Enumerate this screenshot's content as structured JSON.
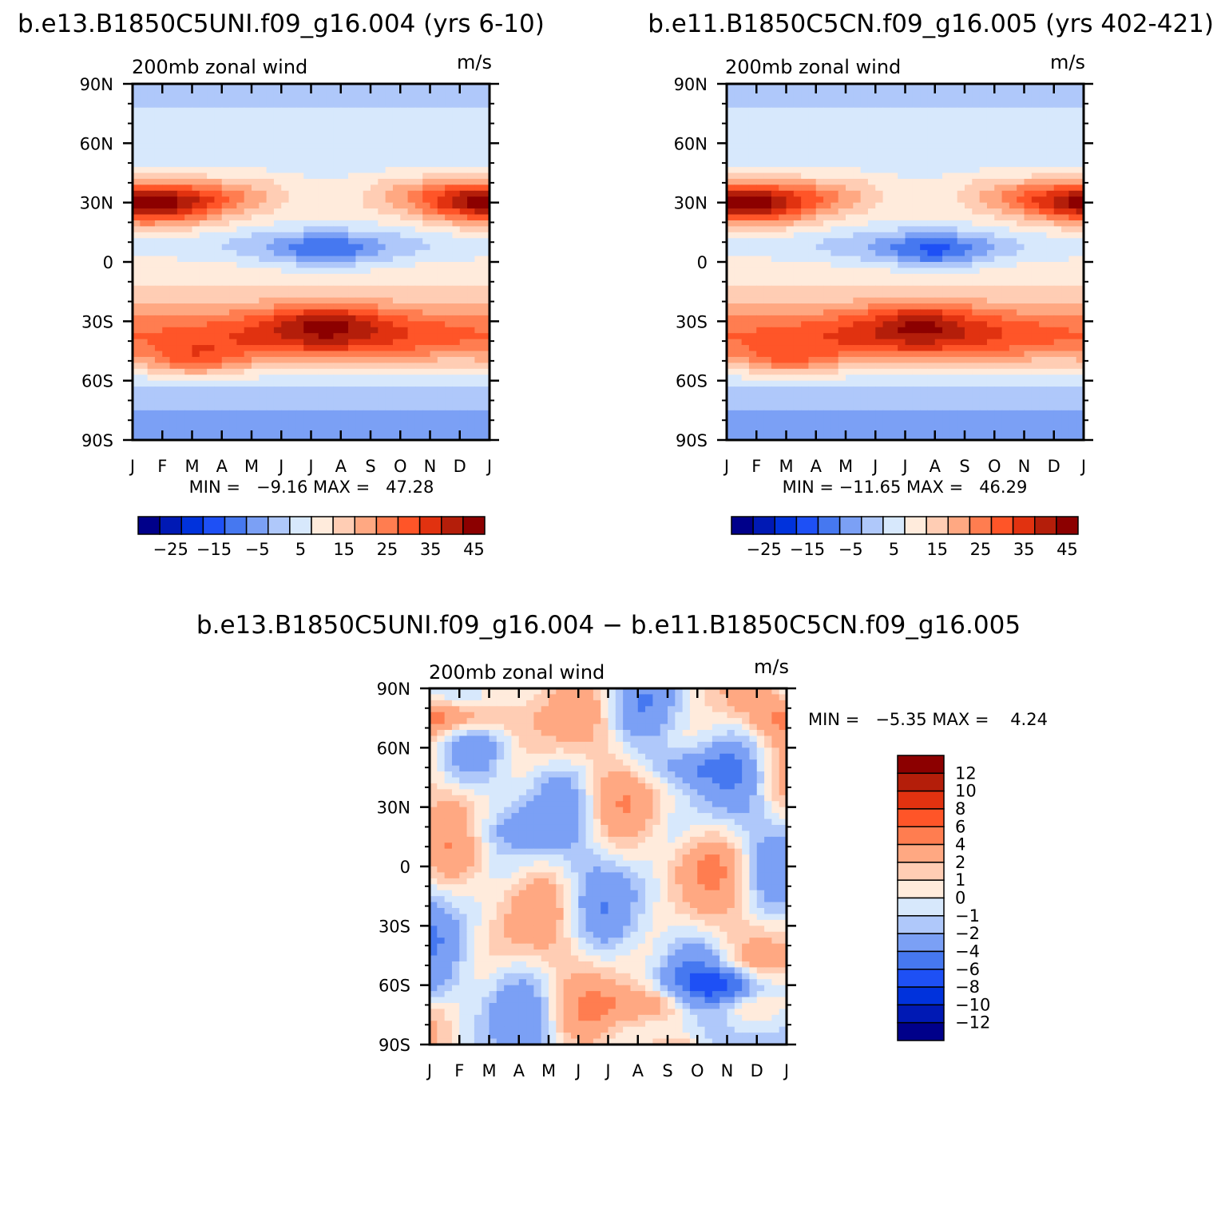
{
  "chart_data": [
    {
      "type": "heatmap",
      "title": "b.e13.B1850C5UNI.f09_g16.004 (yrs 6-10)",
      "subtitle_left": "200mb zonal wind",
      "subtitle_right": "m/s",
      "x_ticks": [
        "J",
        "F",
        "M",
        "A",
        "M",
        "J",
        "J",
        "A",
        "S",
        "O",
        "N",
        "D",
        "J"
      ],
      "y_ticks": [
        "90N",
        "60N",
        "30N",
        "0",
        "30S",
        "60S",
        "90S"
      ],
      "ylim": [
        -90,
        90
      ],
      "stats": "MIN =   −9.16 MAX =   47.28",
      "min": -9.16,
      "max": 47.28,
      "colorbar_labels": [
        "−25",
        "−15",
        "−5",
        "5",
        "15",
        "25",
        "35",
        "45"
      ],
      "levels": [
        -30,
        -25,
        -20,
        -15,
        -10,
        -5,
        0,
        5,
        10,
        15,
        20,
        25,
        30,
        35,
        40,
        45,
        50
      ],
      "features": [
        {
          "lat": 30,
          "month": 1.0,
          "value": 47
        },
        {
          "lat": 32,
          "month": 11.5,
          "value": 44
        },
        {
          "lat": -30,
          "month": 6.5,
          "value": 46
        },
        {
          "lat": -50,
          "month": 2.0,
          "value": 32
        },
        {
          "lat": 5,
          "month": 6.5,
          "value": -9
        }
      ]
    },
    {
      "type": "heatmap",
      "title": "b.e11.B1850C5CN.f09_g16.005 (yrs 402-421)",
      "subtitle_left": "200mb zonal wind",
      "subtitle_right": "m/s",
      "x_ticks": [
        "J",
        "F",
        "M",
        "A",
        "M",
        "J",
        "J",
        "A",
        "S",
        "O",
        "N",
        "D",
        "J"
      ],
      "y_ticks": [
        "90N",
        "60N",
        "30N",
        "0",
        "30S",
        "60S",
        "90S"
      ],
      "ylim": [
        -90,
        90
      ],
      "stats": "MIN = −11.65 MAX =   46.29",
      "min": -11.65,
      "max": 46.29,
      "colorbar_labels": [
        "−25",
        "−15",
        "−5",
        "5",
        "15",
        "25",
        "35",
        "45"
      ],
      "levels": [
        -30,
        -25,
        -20,
        -15,
        -10,
        -5,
        0,
        5,
        10,
        15,
        20,
        25,
        30,
        35,
        40,
        45,
        50
      ],
      "features": [
        {
          "lat": 30,
          "month": 1.0,
          "value": 46
        },
        {
          "lat": 32,
          "month": 11.8,
          "value": 43
        },
        {
          "lat": -30,
          "month": 6.5,
          "value": 45
        },
        {
          "lat": -50,
          "month": 2.0,
          "value": 31
        },
        {
          "lat": 5,
          "month": 7.0,
          "value": -11
        }
      ]
    },
    {
      "type": "heatmap",
      "title": "b.e13.B1850C5UNI.f09_g16.004 − b.e11.B1850C5CN.f09_g16.005",
      "subtitle_left": "200mb zonal wind",
      "subtitle_right": "m/s",
      "x_ticks": [
        "J",
        "F",
        "M",
        "A",
        "M",
        "J",
        "J",
        "A",
        "S",
        "O",
        "N",
        "D",
        "J"
      ],
      "y_ticks": [
        "90N",
        "60N",
        "30N",
        "0",
        "30S",
        "60S",
        "90S"
      ],
      "ylim": [
        -90,
        90
      ],
      "stats": "MIN =   −5.35 MAX =    4.24",
      "min": -5.35,
      "max": 4.24,
      "colorbar_labels": [
        "12",
        "10",
        "8",
        "6",
        "4",
        "2",
        "1",
        "0",
        "−1",
        "−2",
        "−4",
        "−6",
        "−8",
        "−10",
        "−12"
      ],
      "levels": [
        -14,
        -12,
        -10,
        -8,
        -6,
        -4,
        -2,
        -1,
        0,
        1,
        2,
        4,
        6,
        8,
        10,
        12,
        14
      ],
      "features": [
        {
          "lat": 0,
          "month": 9.0,
          "value": 4.2
        },
        {
          "lat": -60,
          "month": 10.2,
          "value": -5.3
        },
        {
          "lat": 75,
          "month": 1.0,
          "value": 3.0
        },
        {
          "lat": -70,
          "month": 7.5,
          "value": 3.0
        },
        {
          "lat": 50,
          "month": 8.5,
          "value": -3.0
        },
        {
          "lat": 18,
          "month": 2.5,
          "value": -2.5
        }
      ]
    }
  ],
  "palette": [
    "#00008a",
    "#0019b4",
    "#0032dc",
    "#1e50f5",
    "#4678f0",
    "#7ba0f5",
    "#afc8fa",
    "#d7e8fc",
    "#ffebdc",
    "#ffcdb4",
    "#ffa882",
    "#ff7d50",
    "#ff5528",
    "#e13210",
    "#b41e0a",
    "#8c0000"
  ]
}
